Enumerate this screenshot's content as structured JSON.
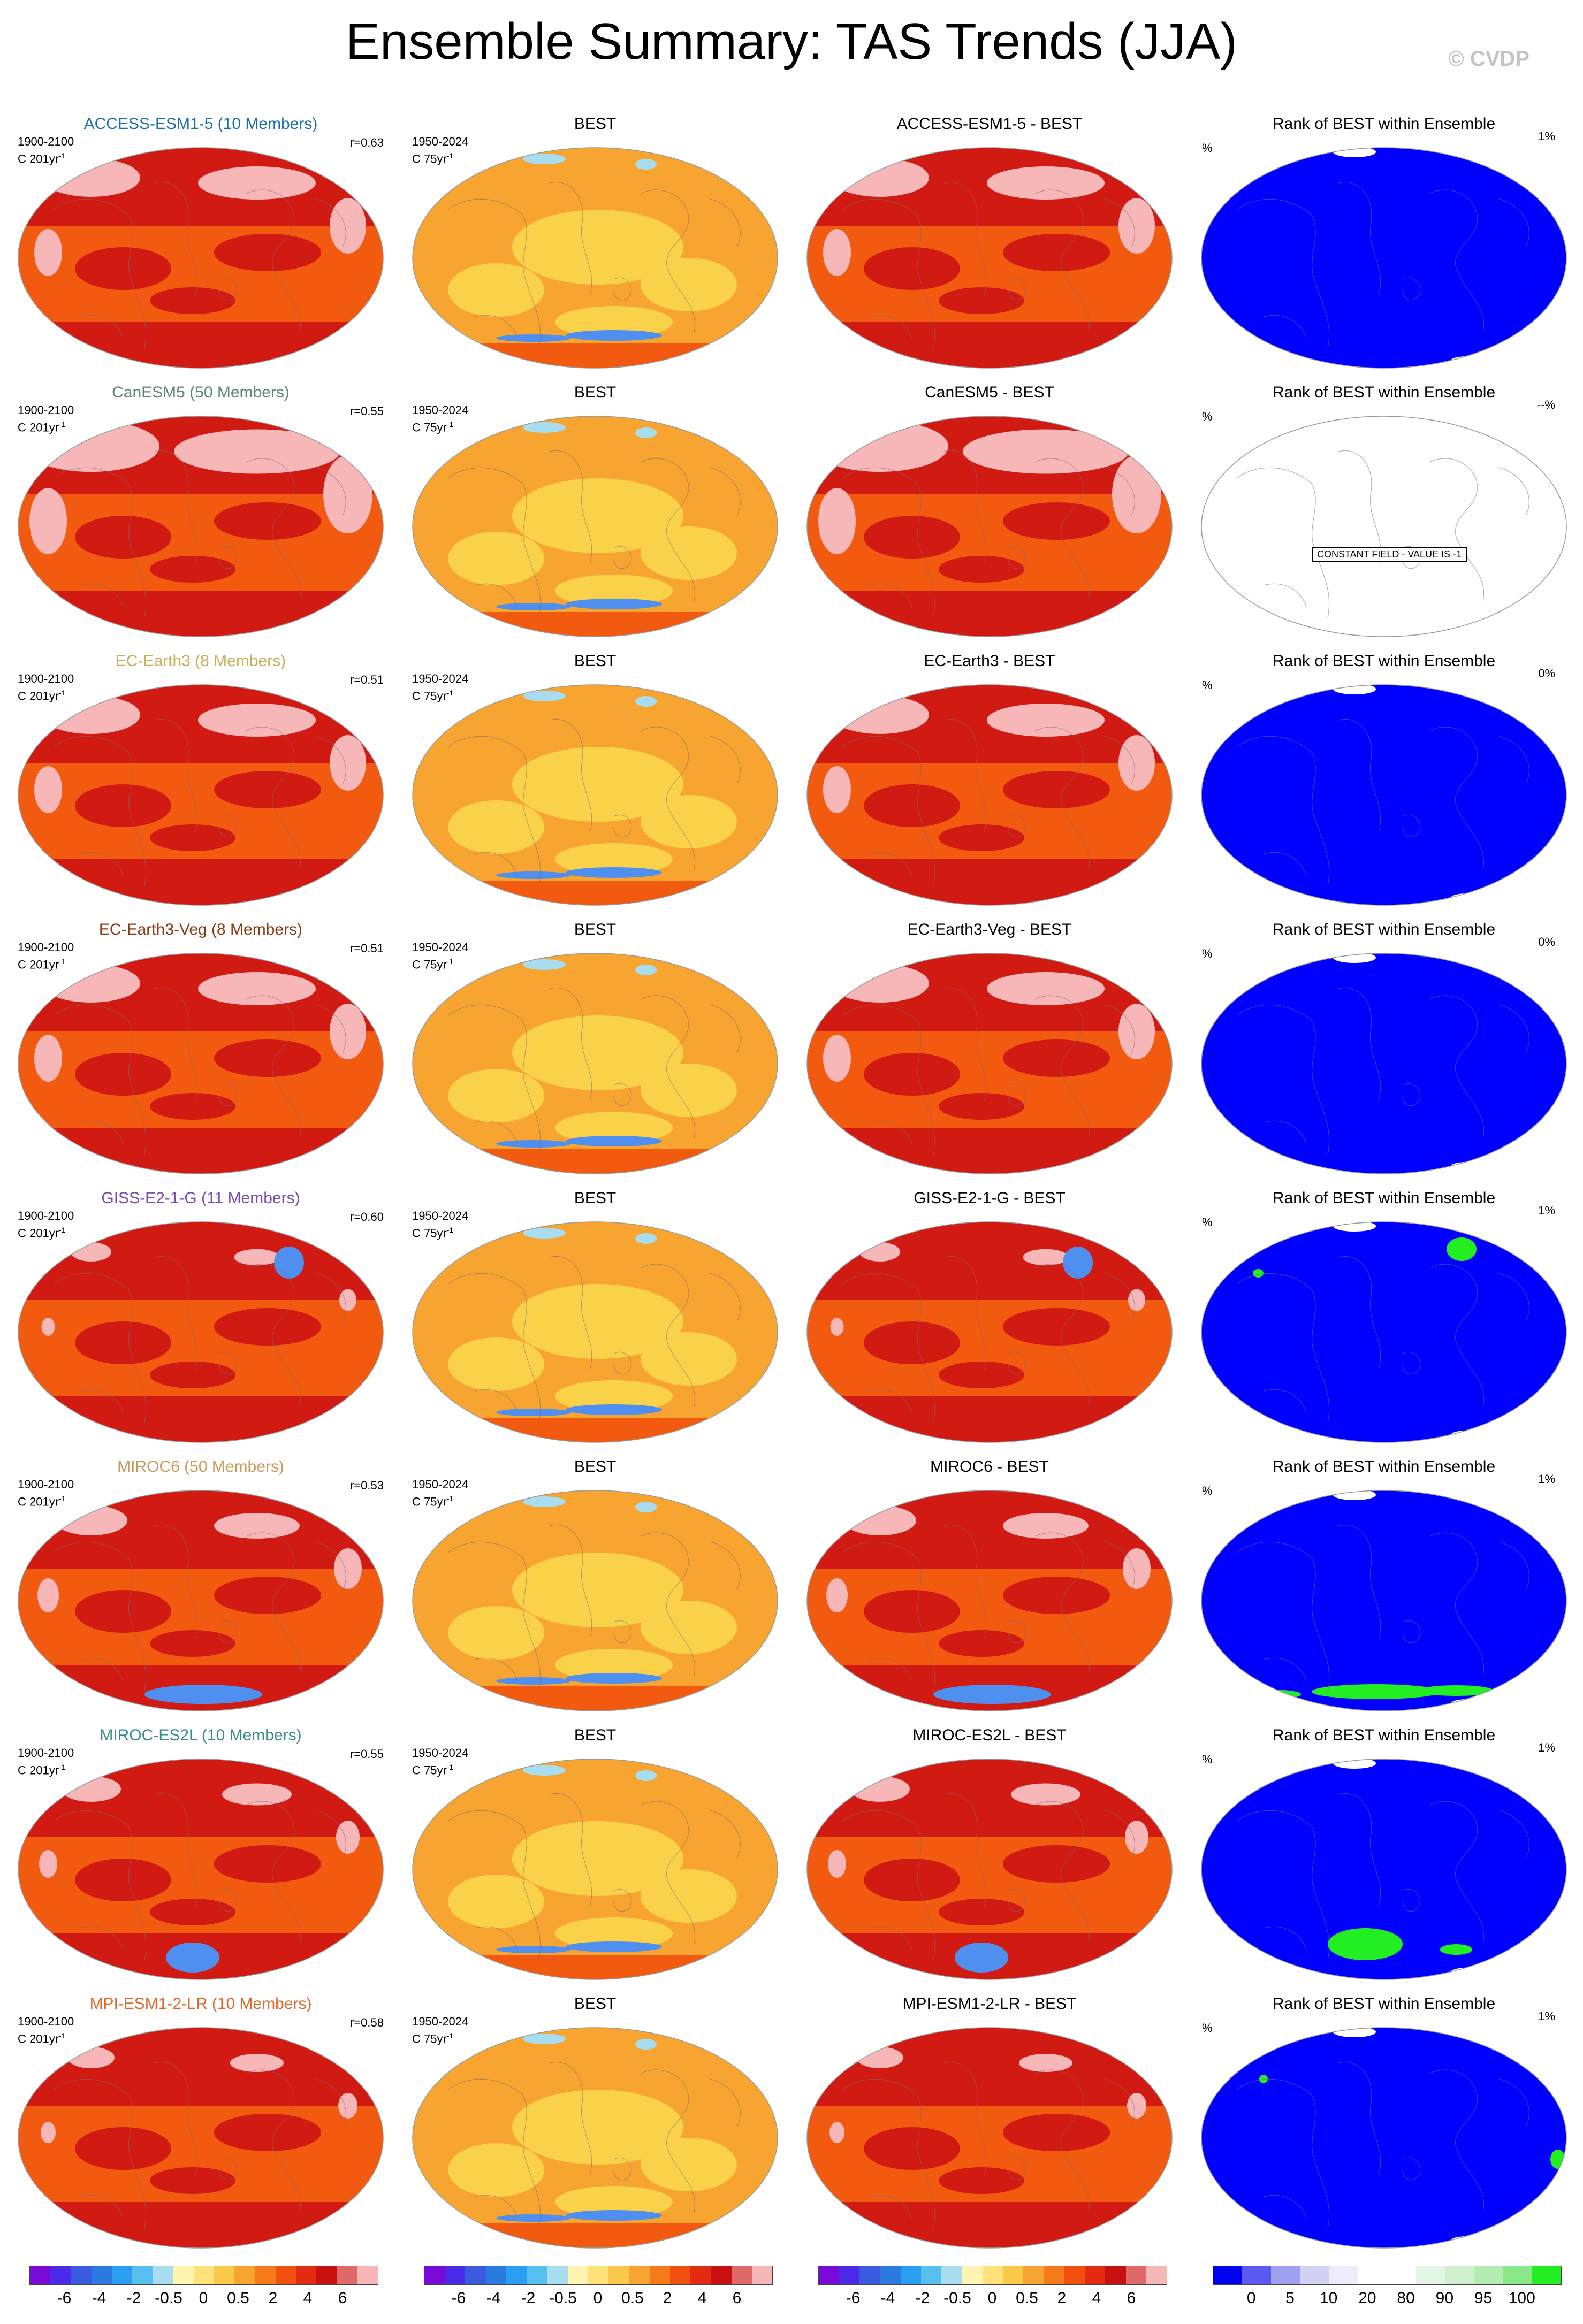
{
  "title": "Ensemble Summary: TAS Trends (JJA)",
  "copyright": "© CVDP",
  "colors": {
    "warm_dark": "#d01a12",
    "warm_mid": "#f25a10",
    "warm_light": "#f8a430",
    "warm_pale": "#fad24a",
    "pink": "#f7b7b9",
    "cool": "#4f8ff0",
    "rank_blue": "#0000ff",
    "rank_green": "#22ee22"
  },
  "panel_meta": {
    "model_period": "1900-2100",
    "model_units_prefix": "C 201yr",
    "obs_period": "1950-2024",
    "obs_units_prefix": "C 75yr",
    "units_exp": "-1",
    "obs_title": "BEST",
    "rank_title": "Rank of BEST within Ensemble",
    "rank_unit": "%",
    "constant_field": "CONSTANT FIELD - VALUE IS -1"
  },
  "rows": [
    {
      "model_title": "ACCESS-ESM1-5 (10 Members)",
      "model_color": "#1a6fa6",
      "r": "r=0.63",
      "diff_title": "ACCESS-ESM1-5 - BEST",
      "rank_pct": "1%",
      "pink": 0.6,
      "green": [],
      "blue": 0,
      "constant": false
    },
    {
      "model_title": "CanESM5 (50 Members)",
      "model_color": "#5d8a6a",
      "r": "r=0.55",
      "diff_title": "CanESM5 - BEST",
      "rank_pct": "--%",
      "pink": 0.9,
      "green": [],
      "blue": 0,
      "constant": true
    },
    {
      "model_title": "EC-Earth3 (8 Members)",
      "model_color": "#c8b05a",
      "r": "r=0.51",
      "diff_title": "EC-Earth3 - BEST",
      "rank_pct": "0%",
      "pink": 0.6,
      "green": [],
      "blue": 0,
      "constant": false
    },
    {
      "model_title": "EC-Earth3-Veg (8 Members)",
      "model_color": "#8a3a12",
      "r": "r=0.51",
      "diff_title": "EC-Earth3-Veg - BEST",
      "rank_pct": "0%",
      "pink": 0.6,
      "green": [],
      "blue": 0,
      "constant": false
    },
    {
      "model_title": "GISS-E2-1-G (11 Members)",
      "model_color": "#7a4ab5",
      "r": "r=0.60",
      "diff_title": "GISS-E2-1-G - BEST",
      "rank_pct": "1%",
      "pink": 0.15,
      "green": [
        "ne"
      ],
      "blue": 1,
      "constant": false
    },
    {
      "model_title": "MIROC6 (50 Members)",
      "model_color": "#c89a5a",
      "r": "r=0.53",
      "diff_title": "MIROC6 - BEST",
      "rank_pct": "1%",
      "pink": 0.4,
      "green": [
        "s1"
      ],
      "blue": 2,
      "constant": false
    },
    {
      "model_title": "MIROC-ES2L (10 Members)",
      "model_color": "#3a8a8a",
      "r": "r=0.55",
      "diff_title": "MIROC-ES2L - BEST",
      "rank_pct": "1%",
      "pink": 0.3,
      "green": [
        "s2"
      ],
      "blue": 3,
      "constant": false
    },
    {
      "model_title": "MPI-ESM1-2-LR (10 Members)",
      "model_color": "#e0662a",
      "r": "r=0.58",
      "diff_title": "MPI-ESM1-2-LR - BEST",
      "rank_pct": "1%",
      "pink": 0.2,
      "green": [
        "e"
      ],
      "blue": 0,
      "constant": false
    }
  ],
  "colorbars": [
    {
      "colors": [
        "#7a0ad8",
        "#4a2ae8",
        "#3a5ae0",
        "#2a7ae0",
        "#2a9ef0",
        "#58c0f0",
        "#a8ddf0",
        "#fff5b0",
        "#ffe27a",
        "#fac94a",
        "#f8a430",
        "#f57a1a",
        "#f25010",
        "#e42a10",
        "#c81010",
        "#e06a6a",
        "#f7b7b9"
      ],
      "labels": [
        "-6",
        "-4",
        "-2",
        "-0.5",
        "0",
        "0.5",
        "2",
        "4",
        "6"
      ]
    },
    {
      "colors": [
        "#7a0ad8",
        "#4a2ae8",
        "#3a5ae0",
        "#2a7ae0",
        "#2a9ef0",
        "#58c0f0",
        "#a8ddf0",
        "#fff5b0",
        "#ffe27a",
        "#fac94a",
        "#f8a430",
        "#f57a1a",
        "#f25010",
        "#e42a10",
        "#c81010",
        "#e06a6a",
        "#f7b7b9"
      ],
      "labels": [
        "-6",
        "-4",
        "-2",
        "-0.5",
        "0",
        "0.5",
        "2",
        "4",
        "6"
      ]
    },
    {
      "colors": [
        "#7a0ad8",
        "#4a2ae8",
        "#3a5ae0",
        "#2a7ae0",
        "#2a9ef0",
        "#58c0f0",
        "#a8ddf0",
        "#fff5b0",
        "#ffe27a",
        "#fac94a",
        "#f8a430",
        "#f57a1a",
        "#f25010",
        "#e42a10",
        "#c81010",
        "#e06a6a",
        "#f7b7b9"
      ],
      "labels": [
        "-6",
        "-4",
        "-2",
        "-0.5",
        "0",
        "0.5",
        "2",
        "4",
        "6"
      ]
    },
    {
      "colors": [
        "#0000f0",
        "#5a5af0",
        "#a0a0f0",
        "#d2d2f5",
        "#ececfa",
        "#ffffff",
        "#ffffff",
        "#e6f6e6",
        "#d0f0d0",
        "#b4ecb4",
        "#8ae88a",
        "#22ee22"
      ],
      "labels": [
        "0",
        "5",
        "10",
        "20",
        "80",
        "90",
        "95",
        "100"
      ]
    }
  ]
}
